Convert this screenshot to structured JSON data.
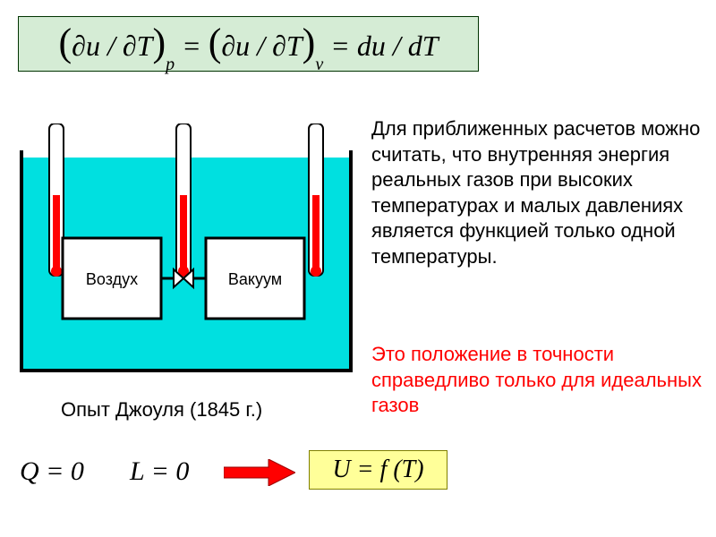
{
  "main_formula": {
    "background_color": "#d5ecd5",
    "border_color": "#003300",
    "text_color": "#000000",
    "expr_html": "<span class='paren'>(</span>∂u / ∂T<span class='paren'>)</span><span class='sub'>p</span> = <span class='paren'>(</span>∂u / ∂T<span class='paren'>)</span><span class='sub'>v</span> = du / dT"
  },
  "diagram": {
    "container_stroke": "#000000",
    "water_color": "#00e0e0",
    "box_fill": "#ffffff",
    "box_stroke": "#000000",
    "thermo_fill": "#ff0000",
    "thermo_stroke": "#000000",
    "box_left_label": "Воздух",
    "box_right_label": "Вакуум",
    "label_fontsize": 18
  },
  "body_text": {
    "color": "#000000",
    "content": "Для приближенных расчетов можно считать, что внутренняя энергия реальных газов при высоких температурах и малых давлениях является функцией только одной температуры."
  },
  "red_text": {
    "color": "#ff0000",
    "content": "Это положение в точности справедливо только для идеальных газов"
  },
  "caption": {
    "color": "#000000",
    "content": "Опыт Джоуля (1845 г.)"
  },
  "equations": {
    "Q": "Q = 0",
    "L": "L = 0"
  },
  "arrow": {
    "fill": "#ff0000",
    "stroke": "#990000"
  },
  "result_formula": {
    "background_color": "#ffff99",
    "border_color": "#808000",
    "text_color": "#000000",
    "expr": "U = f (T)"
  }
}
